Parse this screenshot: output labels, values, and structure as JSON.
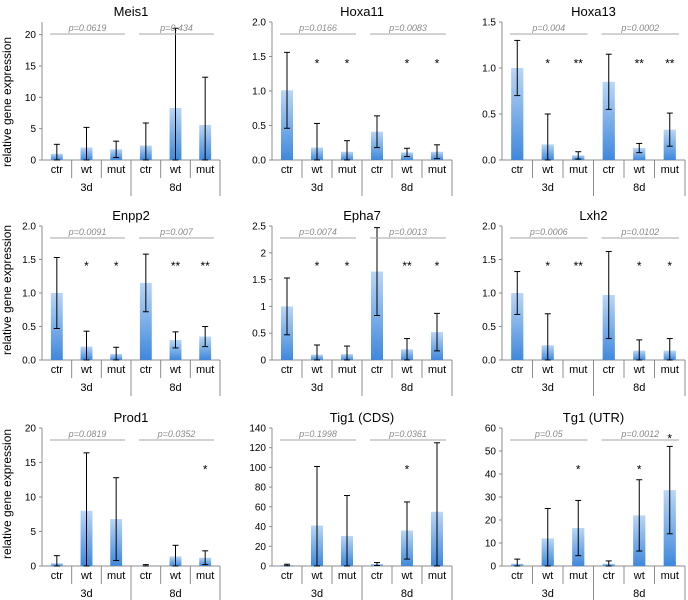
{
  "ylabel": "relative gene expression",
  "chart_data": [
    {
      "type": "bar",
      "title": "Meis1",
      "ylim": [
        0,
        22
      ],
      "yticks": [
        0,
        5,
        10,
        15,
        20
      ],
      "tick_labels": [
        "0",
        "5",
        "10",
        "15",
        "20"
      ],
      "groups": [
        "3d",
        "8d"
      ],
      "categories": [
        "ctr",
        "wt",
        "mut",
        "ctr",
        "wt",
        "mut"
      ],
      "values": [
        1.0,
        2.0,
        1.7,
        2.3,
        8.3,
        5.6
      ],
      "errors": [
        1.5,
        3.2,
        1.3,
        3.6,
        12.7,
        7.6
      ],
      "stars": [
        "",
        "",
        "",
        "",
        "",
        ""
      ],
      "pvalues": [
        "p=0.0619",
        "p=0.434"
      ]
    },
    {
      "type": "bar",
      "title": "Hoxa11",
      "ylim": [
        0,
        2.0
      ],
      "yticks": [
        0,
        0.5,
        1.0,
        1.5,
        2.0
      ],
      "tick_labels": [
        "0.0",
        "0.5",
        "1.0",
        "1.5",
        "2.0"
      ],
      "groups": [
        "3d",
        "8d"
      ],
      "categories": [
        "ctr",
        "wt",
        "mut",
        "ctr",
        "wt",
        "mut"
      ],
      "values": [
        1.01,
        0.18,
        0.12,
        0.41,
        0.11,
        0.12
      ],
      "errors": [
        0.55,
        0.35,
        0.16,
        0.23,
        0.06,
        0.1
      ],
      "stars": [
        "",
        "*",
        "*",
        "",
        "*",
        "*"
      ],
      "pvalues": [
        "p=0.0166",
        "p=0.0083"
      ]
    },
    {
      "type": "bar",
      "title": "Hoxa13",
      "ylim": [
        0,
        1.5
      ],
      "yticks": [
        0,
        0.5,
        1.0,
        1.5
      ],
      "tick_labels": [
        "0.0",
        "0.5",
        "1.0",
        "1.5"
      ],
      "groups": [
        "3d",
        "8d"
      ],
      "categories": [
        "ctr",
        "wt",
        "mut",
        "ctr",
        "wt",
        "mut"
      ],
      "values": [
        1.0,
        0.17,
        0.05,
        0.85,
        0.13,
        0.33
      ],
      "errors": [
        0.3,
        0.33,
        0.04,
        0.3,
        0.05,
        0.18
      ],
      "stars": [
        "",
        "*",
        "**",
        "",
        "**",
        "**"
      ],
      "pvalues": [
        "p=0.004",
        "p=0.0002"
      ]
    },
    {
      "type": "bar",
      "title": "Enpp2",
      "ylim": [
        0,
        2.0
      ],
      "yticks": [
        0,
        0.5,
        1.0,
        1.5,
        2.0
      ],
      "tick_labels": [
        "0.0",
        "0.5",
        "1.0",
        "1.5",
        "2.0"
      ],
      "groups": [
        "3d",
        "8d"
      ],
      "categories": [
        "ctr",
        "wt",
        "mut",
        "ctr",
        "wt",
        "mut"
      ],
      "values": [
        1.0,
        0.2,
        0.09,
        1.15,
        0.3,
        0.35
      ],
      "errors": [
        0.53,
        0.23,
        0.1,
        0.43,
        0.12,
        0.15
      ],
      "stars": [
        "",
        "*",
        "*",
        "",
        "**",
        "**"
      ],
      "pvalues": [
        "p=0.0091",
        "p=0.007"
      ]
    },
    {
      "type": "bar",
      "title": "Epha7",
      "ylim": [
        0,
        2.5
      ],
      "yticks": [
        0,
        0.5,
        1.0,
        1.5,
        2.0,
        2.5
      ],
      "tick_labels": [
        "0",
        "0.5",
        "1",
        "1.5",
        "2",
        "2.5"
      ],
      "groups": [
        "3d",
        "8d"
      ],
      "categories": [
        "ctr",
        "wt",
        "mut",
        "ctr",
        "wt",
        "mut"
      ],
      "values": [
        1.0,
        0.1,
        0.11,
        1.65,
        0.2,
        0.52
      ],
      "errors": [
        0.53,
        0.18,
        0.15,
        0.82,
        0.2,
        0.35
      ],
      "stars": [
        "",
        "*",
        "*",
        "",
        "**",
        "*"
      ],
      "pvalues": [
        "p=0.0074",
        "p=0.0013"
      ]
    },
    {
      "type": "bar",
      "title": "Lxh2",
      "ylim": [
        0,
        2.0
      ],
      "yticks": [
        0,
        0.5,
        1.0,
        1.5,
        2.0
      ],
      "tick_labels": [
        "0.0",
        "0.5",
        "1.0",
        "1.5",
        "2.0"
      ],
      "groups": [
        "3d",
        "8d"
      ],
      "categories": [
        "ctr",
        "wt",
        "mut",
        "ctr",
        "wt",
        "mut"
      ],
      "values": [
        1.0,
        0.22,
        0.0,
        0.97,
        0.14,
        0.14
      ],
      "errors": [
        0.32,
        0.47,
        0.0,
        0.65,
        0.16,
        0.18
      ],
      "stars": [
        "",
        "*",
        "**",
        "",
        "*",
        "*"
      ],
      "pvalues": [
        "p=0.0006",
        "p=0.0102"
      ]
    },
    {
      "type": "bar",
      "title": "Prod1",
      "ylim": [
        0,
        20
      ],
      "yticks": [
        0,
        5,
        10,
        15,
        20
      ],
      "tick_labels": [
        "0",
        "5",
        "10",
        "15",
        "20"
      ],
      "groups": [
        "3d",
        "8d"
      ],
      "categories": [
        "ctr",
        "wt",
        "mut",
        "ctr",
        "wt",
        "mut"
      ],
      "values": [
        0.4,
        8.0,
        6.8,
        0.1,
        1.4,
        1.2
      ],
      "errors": [
        1.1,
        8.4,
        6.0,
        0.1,
        1.6,
        1.0
      ],
      "stars": [
        "",
        "",
        "",
        "",
        "",
        "*"
      ],
      "pvalues": [
        "p=0.0819",
        "p=0.0352"
      ]
    },
    {
      "type": "bar",
      "title": "Tig1 (CDS)",
      "ylim": [
        0,
        140
      ],
      "yticks": [
        0,
        20,
        40,
        60,
        80,
        100,
        120,
        140
      ],
      "tick_labels": [
        "0",
        "20",
        "40",
        "60",
        "80",
        "100",
        "120",
        "140"
      ],
      "groups": [
        "3d",
        "8d"
      ],
      "categories": [
        "ctr",
        "wt",
        "mut",
        "ctr",
        "wt",
        "mut"
      ],
      "values": [
        1.0,
        41.0,
        30.5,
        2.0,
        36.0,
        55.0
      ],
      "errors": [
        0.8,
        60.0,
        41.0,
        1.5,
        29.0,
        70.0
      ],
      "stars": [
        "",
        "",
        "",
        "",
        "*",
        ""
      ],
      "pvalues": [
        "p=0.1998",
        "p=0.0361"
      ]
    },
    {
      "type": "bar",
      "title": "Tg1 (UTR)",
      "ylim": [
        0,
        60
      ],
      "yticks": [
        0,
        10,
        20,
        30,
        40,
        50,
        60
      ],
      "tick_labels": [
        "0",
        "10",
        "20",
        "30",
        "40",
        "50",
        "60"
      ],
      "groups": [
        "3d",
        "8d"
      ],
      "categories": [
        "ctr",
        "wt",
        "mut",
        "ctr",
        "wt",
        "mut"
      ],
      "values": [
        1.0,
        12.0,
        16.5,
        1.0,
        22.0,
        33.0
      ],
      "errors": [
        2.0,
        13.0,
        12.0,
        1.2,
        15.5,
        19.0
      ],
      "stars": [
        "",
        "",
        "*",
        "",
        "*",
        "*"
      ],
      "pvalues": [
        "p=0.05",
        "p=0.0012"
      ]
    }
  ]
}
